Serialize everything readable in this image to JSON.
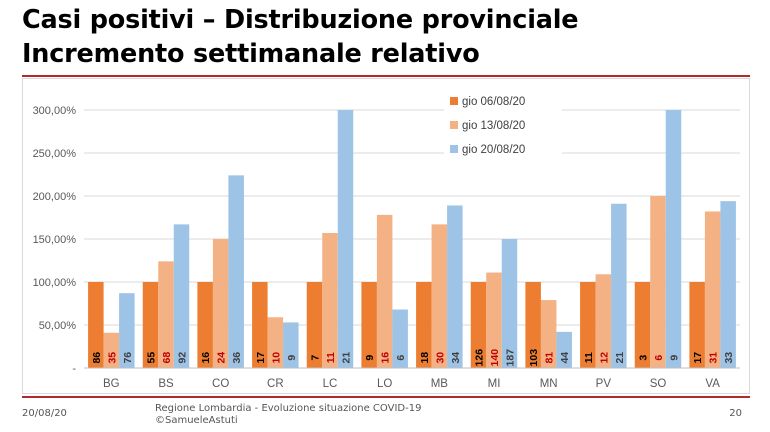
{
  "slide": {
    "title_line1": "Casi positivi – Distribuzione provinciale",
    "title_line2": "Incremento settimanale relativo",
    "footer_date": "20/08/20",
    "footer_source_line1": "Regione Lombardia - Evoluzione situazione COVID-19",
    "footer_source_line2": "©SamueleAstuti",
    "page_number": "20",
    "accent_color": "#b22a2a"
  },
  "chart_data": {
    "type": "bar",
    "categories": [
      "BG",
      "BS",
      "CO",
      "CR",
      "LC",
      "LO",
      "MB",
      "MI",
      "MN",
      "PV",
      "SO",
      "VA"
    ],
    "ylim": [
      0,
      300
    ],
    "y_ticks": [
      0,
      50,
      100,
      150,
      200,
      250,
      300
    ],
    "y_tick_labels": [
      "-",
      "50,00%",
      "100,00%",
      "150,00%",
      "200,00%",
      "250,00%",
      "300,00%"
    ],
    "grid": true,
    "legend_position": "top-right",
    "series": [
      {
        "name": "gio 06/08/20",
        "color": "#ed7d31",
        "label_color": "#000000",
        "values": [
          100,
          100,
          100,
          100,
          100,
          100,
          100,
          100,
          100,
          100,
          100,
          100
        ],
        "counts": [
          "86",
          "55",
          "16",
          "17",
          "7",
          "9",
          "18",
          "126",
          "103",
          "11",
          "3",
          "17"
        ]
      },
      {
        "name": "gio 13/08/20",
        "color": "#f4b183",
        "label_color": "#c00000",
        "values": [
          41,
          124,
          150,
          59,
          157,
          178,
          167,
          111,
          79,
          109,
          200,
          182
        ],
        "counts": [
          "35",
          "68",
          "24",
          "10",
          "11",
          "16",
          "30",
          "140",
          "81",
          "12",
          "6",
          "31"
        ]
      },
      {
        "name": "gio 20/08/20",
        "color": "#9dc3e6",
        "label_color": "#404040",
        "values": [
          87,
          167,
          224,
          53,
          300,
          68,
          189,
          150,
          42,
          191,
          300,
          194
        ],
        "counts": [
          "76",
          "92",
          "36",
          "9",
          "21",
          "6",
          "34",
          "187",
          "44",
          "21",
          "9",
          "33"
        ]
      }
    ]
  }
}
